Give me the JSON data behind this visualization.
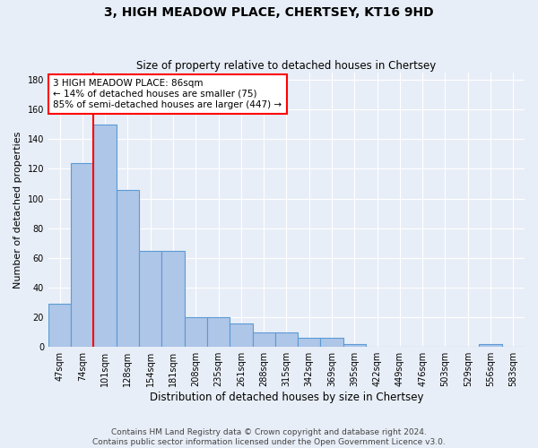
{
  "title": "3, HIGH MEADOW PLACE, CHERTSEY, KT16 9HD",
  "subtitle": "Size of property relative to detached houses in Chertsey",
  "xlabel": "Distribution of detached houses by size in Chertsey",
  "ylabel": "Number of detached properties",
  "footer_line1": "Contains HM Land Registry data © Crown copyright and database right 2024.",
  "footer_line2": "Contains public sector information licensed under the Open Government Licence v3.0.",
  "categories": [
    "47sqm",
    "74sqm",
    "101sqm",
    "128sqm",
    "154sqm",
    "181sqm",
    "208sqm",
    "235sqm",
    "261sqm",
    "288sqm",
    "315sqm",
    "342sqm",
    "369sqm",
    "395sqm",
    "422sqm",
    "449sqm",
    "476sqm",
    "503sqm",
    "529sqm",
    "556sqm",
    "583sqm"
  ],
  "values": [
    29,
    124,
    150,
    106,
    65,
    65,
    20,
    20,
    16,
    10,
    10,
    6,
    6,
    2,
    0,
    0,
    0,
    0,
    0,
    2,
    0
  ],
  "bar_color": "#aec6e8",
  "bar_edge_color": "#5b9bd5",
  "red_line_x": 1.5,
  "annotation_text": "3 HIGH MEADOW PLACE: 86sqm\n← 14% of detached houses are smaller (75)\n85% of semi-detached houses are larger (447) →",
  "annotation_box_color": "white",
  "annotation_box_edge_color": "red",
  "ylim": [
    0,
    185
  ],
  "yticks": [
    0,
    20,
    40,
    60,
    80,
    100,
    120,
    140,
    160,
    180
  ],
  "background_color": "#e8eef7",
  "grid_color": "#ffffff",
  "title_fontsize": 10,
  "subtitle_fontsize": 8.5,
  "ylabel_fontsize": 8,
  "xlabel_fontsize": 8.5,
  "tick_fontsize": 7,
  "annotation_fontsize": 7.5,
  "footer_fontsize": 6.5
}
